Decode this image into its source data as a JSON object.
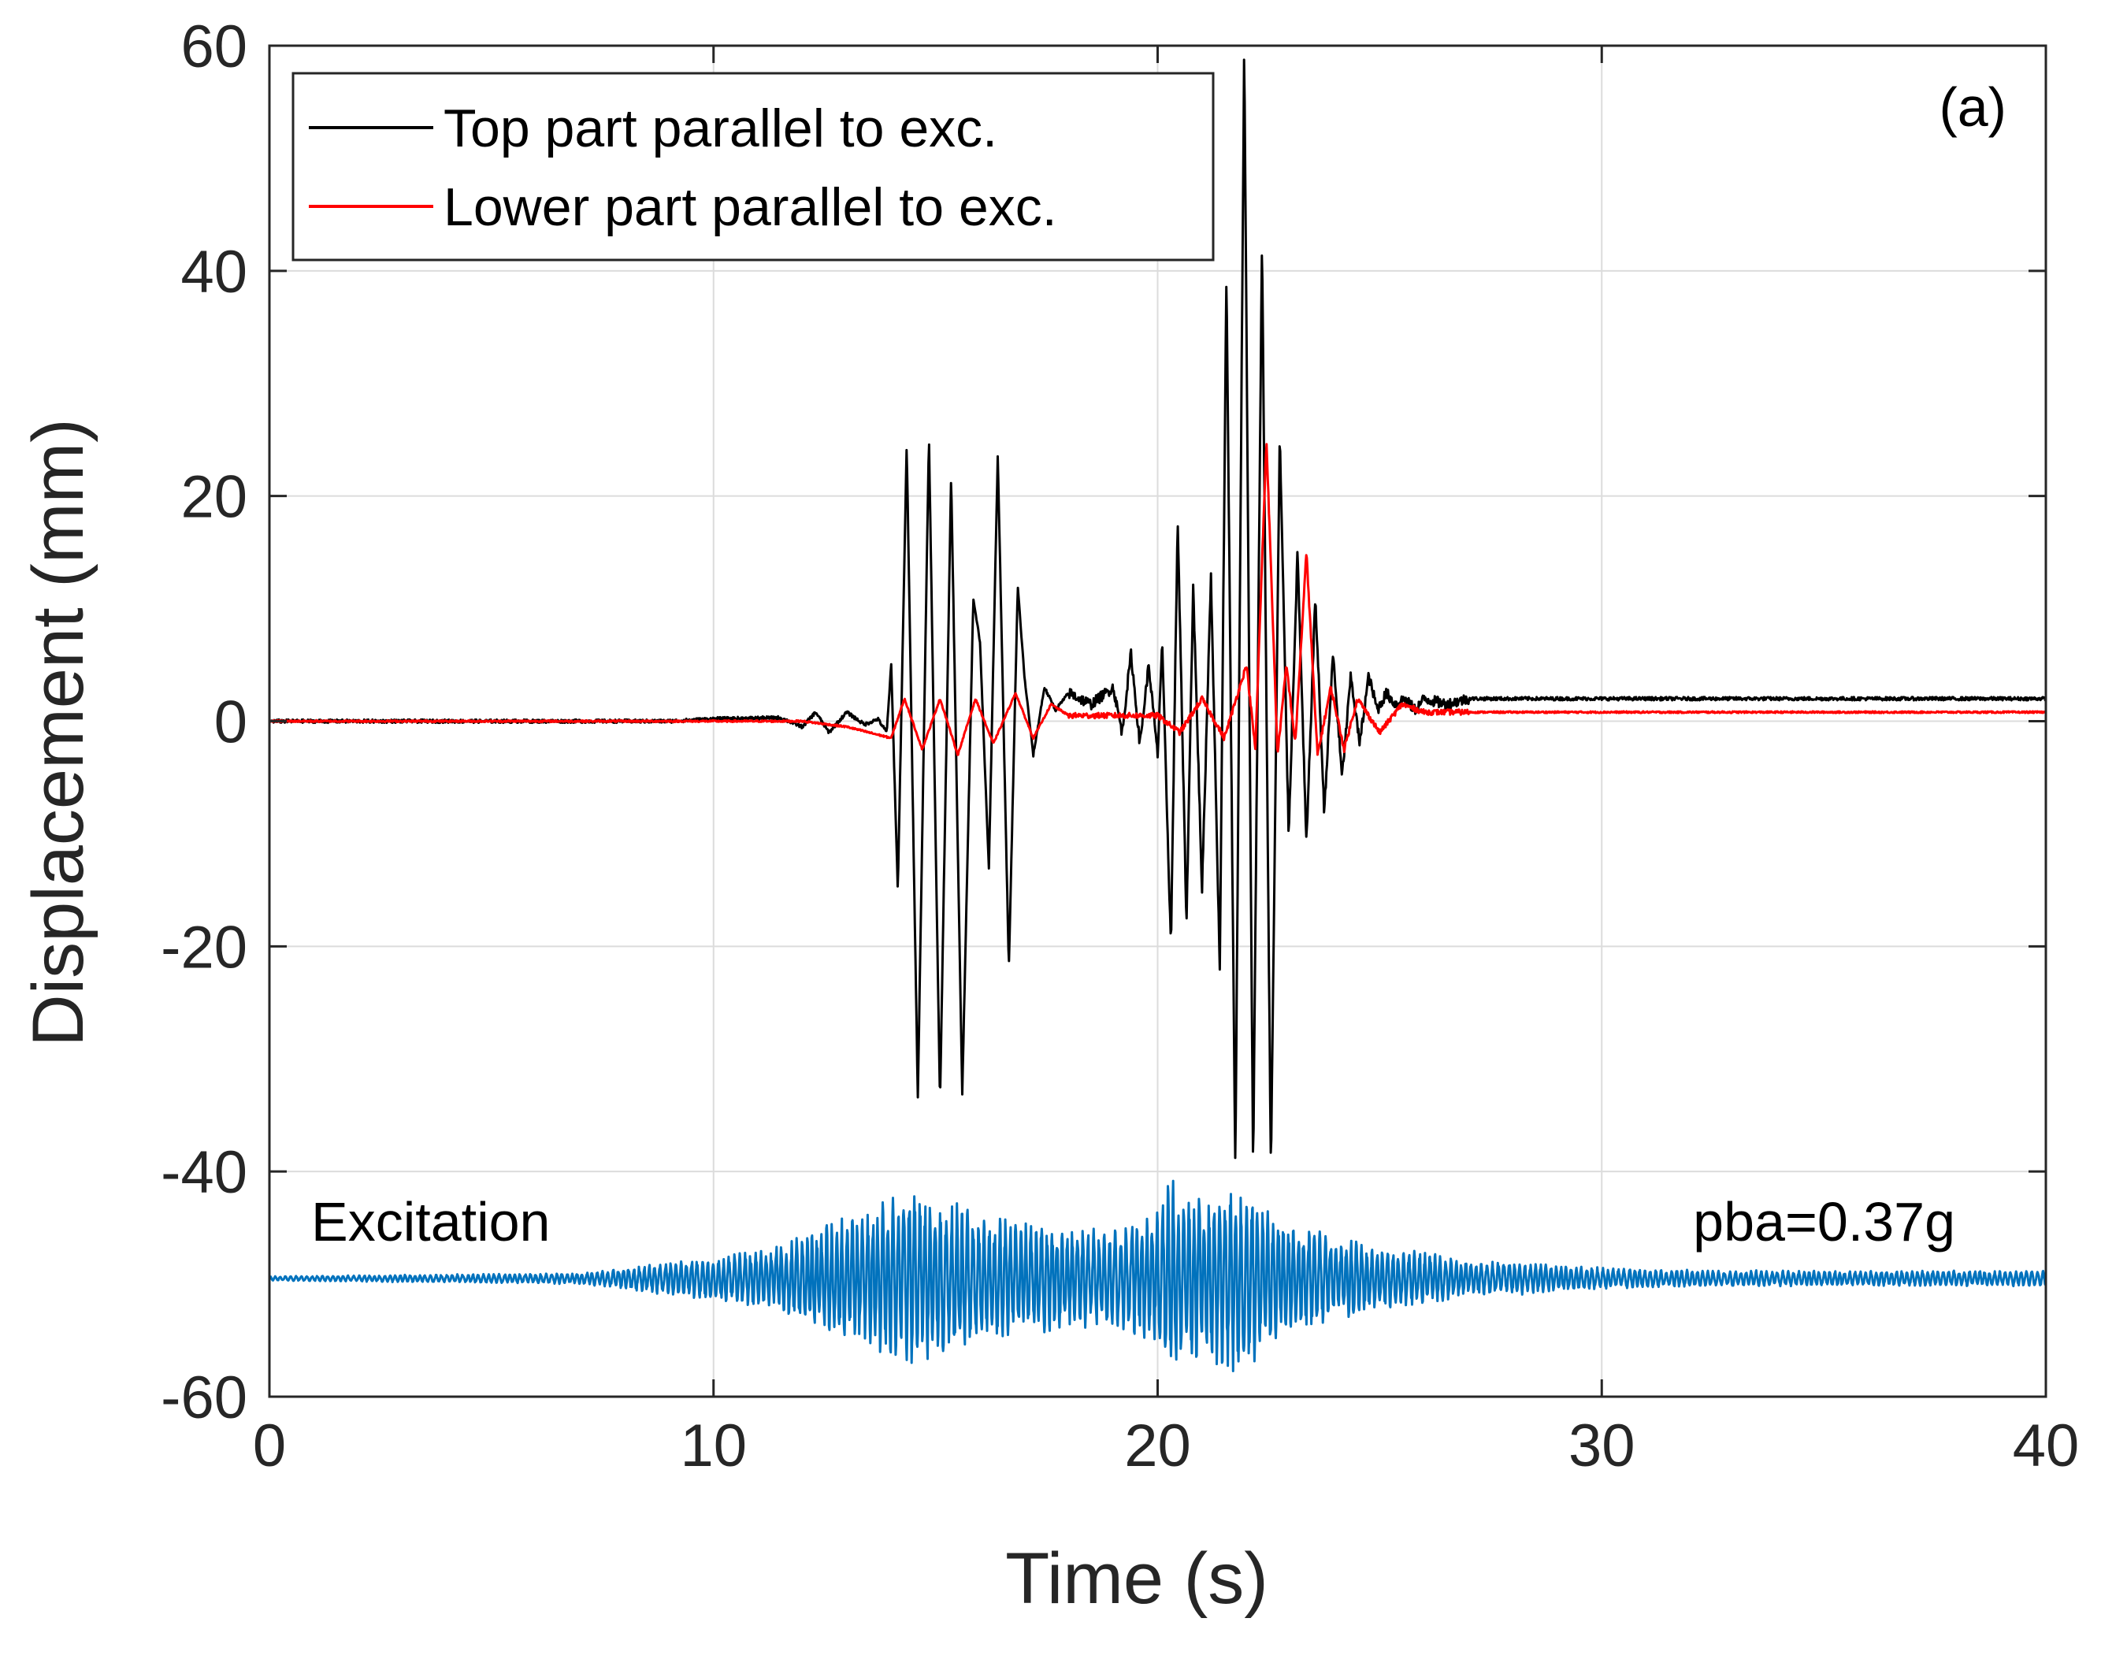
{
  "chart_data": {
    "type": "line",
    "xlabel": "Time (s)",
    "ylabel": "Displacement (mm)",
    "xlim": [
      0,
      40
    ],
    "ylim": [
      -60,
      60
    ],
    "xticks": [
      0,
      10,
      20,
      30,
      40
    ],
    "yticks": [
      -60,
      -40,
      -20,
      0,
      20,
      40,
      60
    ],
    "xtick_labels": [
      "0",
      "10",
      "20",
      "30",
      "40"
    ],
    "ytick_labels": [
      "-60",
      "-40",
      "-20",
      "0",
      "20",
      "40",
      "60"
    ],
    "grid": true,
    "legend_position": "top-left",
    "panel_label": "(a)",
    "series": [
      {
        "name": "Top part parallel to exc.",
        "color": "#000000",
        "x": [
          0,
          5,
          9,
          10,
          11.5,
          12.0,
          12.3,
          12.6,
          13.0,
          13.4,
          13.7,
          13.9,
          14.0,
          14.15,
          14.35,
          14.6,
          14.85,
          15.1,
          15.35,
          15.6,
          15.85,
          16.0,
          16.2,
          16.4,
          16.65,
          16.85,
          17.0,
          17.2,
          17.45,
          17.7,
          18.0,
          18.5,
          19.0,
          19.2,
          19.4,
          19.6,
          19.8,
          20.0,
          20.1,
          20.3,
          20.45,
          20.65,
          20.8,
          21.0,
          21.2,
          21.4,
          21.55,
          21.75,
          21.95,
          22.15,
          22.35,
          22.55,
          22.75,
          22.95,
          23.15,
          23.35,
          23.55,
          23.75,
          23.95,
          24.15,
          24.35,
          24.55,
          24.75,
          24.95,
          25.15,
          25.35,
          25.55,
          25.8,
          26.0,
          26.5,
          27.0,
          28.0,
          30.0,
          35.0,
          40.0
        ],
        "values": [
          0,
          0,
          0,
          0.2,
          0.3,
          -0.5,
          0.8,
          -1.0,
          0.8,
          -0.3,
          0.2,
          -1.0,
          5.0,
          -15.0,
          24.6,
          -33.5,
          25.3,
          -34.0,
          21.8,
          -33.0,
          11.0,
          7.0,
          -13.0,
          23.5,
          -22.0,
          12.0,
          4.0,
          -3.0,
          3.0,
          1.0,
          2.5,
          1.5,
          3.0,
          -1.0,
          6.0,
          -2.0,
          5.0,
          -3.0,
          7.0,
          -20.0,
          18.0,
          -18.0,
          12.0,
          -15.0,
          13.0,
          -22.0,
          40.0,
          -40.0,
          60.0,
          -40.0,
          43.0,
          -40.0,
          25.5,
          -10.0,
          15.0,
          -11.0,
          11.0,
          -8.0,
          6.0,
          -5.0,
          4.0,
          -2.0,
          4.0,
          1.0,
          2.5,
          1.5,
          2.0,
          1.0,
          2.0,
          1.5,
          2.0,
          2.0,
          2.0,
          2.0,
          2.0
        ]
      },
      {
        "name": "Lower part parallel to exc.",
        "color": "#ff0000",
        "x": [
          0,
          10,
          12.0,
          13.0,
          14.0,
          14.3,
          14.7,
          15.1,
          15.5,
          15.9,
          16.3,
          16.8,
          17.2,
          17.6,
          18.0,
          19.0,
          20.0,
          20.5,
          21.0,
          21.5,
          22.0,
          22.2,
          22.45,
          22.7,
          22.9,
          23.1,
          23.35,
          23.6,
          23.9,
          24.2,
          24.5,
          25.0,
          25.5,
          26.0,
          27.0,
          30.0,
          40.0
        ],
        "values": [
          0,
          0,
          0.0,
          -0.5,
          -1.5,
          2.0,
          -2.5,
          2.0,
          -3.0,
          2.0,
          -2.0,
          2.5,
          -1.5,
          1.5,
          0.5,
          0.5,
          0.5,
          -1.0,
          2.0,
          -1.5,
          5.0,
          -2.5,
          25.0,
          -3.0,
          5.0,
          -2.0,
          15.0,
          -3.0,
          3.0,
          -2.5,
          2.0,
          -1.0,
          1.5,
          0.8,
          0.8,
          0.8,
          0.8
        ]
      },
      {
        "name": "Excitation",
        "color": "#0072bd",
        "baseline": -49.5,
        "x": [
          0,
          7,
          9,
          10,
          11,
          11.5,
          12,
          12.5,
          13,
          13.5,
          14,
          14.5,
          15,
          15.5,
          16,
          16.5,
          17,
          17.5,
          18,
          18.5,
          19,
          19.5,
          20,
          20.2,
          20.6,
          21,
          21.5,
          22,
          22.5,
          23,
          23.5,
          24,
          24.5,
          25,
          25.5,
          26,
          26.5,
          27,
          28,
          29,
          30,
          31,
          35,
          40
        ],
        "amplitude": [
          0.2,
          0.5,
          1.5,
          2.0,
          2.5,
          3.0,
          4.0,
          5.0,
          5.5,
          6.0,
          7.5,
          8.0,
          7.0,
          7.0,
          5.5,
          5.5,
          5.0,
          5.0,
          4.5,
          4.5,
          4.5,
          5.5,
          6.0,
          9.5,
          8.0,
          7.5,
          9.0,
          8.5,
          6.0,
          5.0,
          4.5,
          3.5,
          3.5,
          3.0,
          2.5,
          2.5,
          2.0,
          1.5,
          1.5,
          1.2,
          1.0,
          0.8,
          0.7,
          0.7
        ]
      }
    ],
    "annotations": {
      "excitation_label": "Excitation",
      "pba_label": "pba=0.37g"
    }
  }
}
